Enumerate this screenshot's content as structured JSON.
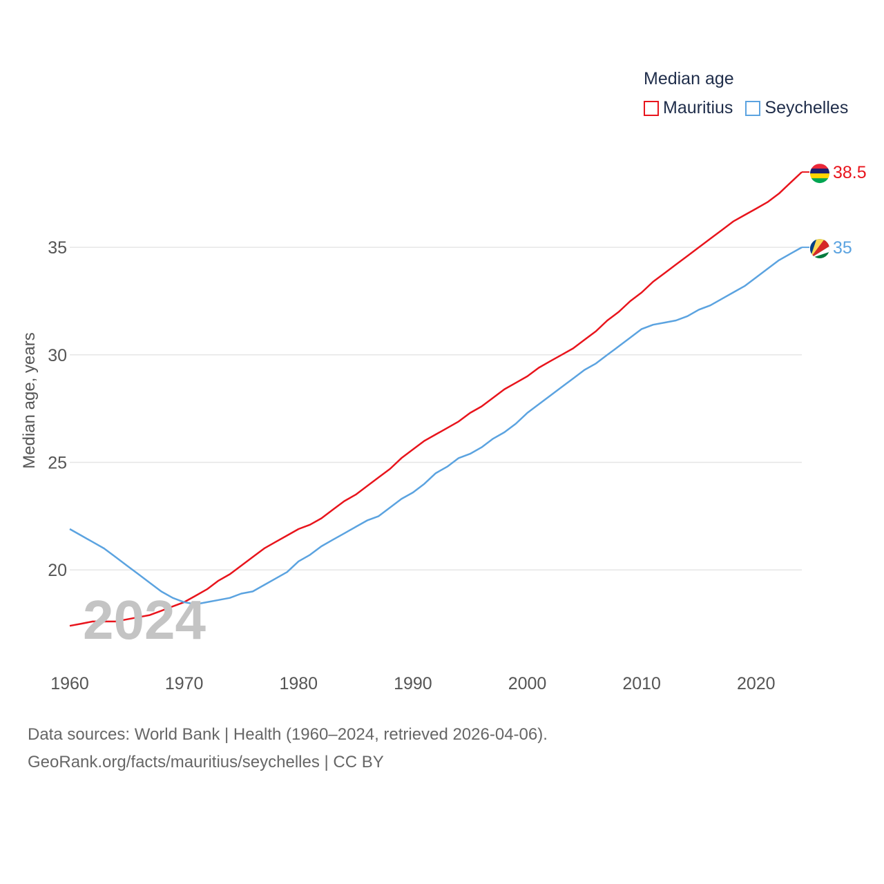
{
  "legend": {
    "title": "Median age"
  },
  "watermark_year": "2024",
  "source": {
    "line1": "Data sources: World Bank | Health (1960–2024, retrieved 2026-04-06).",
    "line2": "GeoRank.org/facts/mauritius/seychelles | CC BY"
  },
  "chart_data": {
    "type": "line",
    "title": "Median age",
    "xlabel": "",
    "ylabel": "Median age, years",
    "xlim": [
      1960,
      2024
    ],
    "ylim": [
      15.8,
      38.6
    ],
    "x_ticks": [
      1960,
      1970,
      1980,
      1990,
      2000,
      2010,
      2020
    ],
    "y_ticks": [
      20,
      25,
      30,
      35
    ],
    "x": [
      1960,
      1961,
      1962,
      1963,
      1964,
      1965,
      1966,
      1967,
      1968,
      1969,
      1970,
      1971,
      1972,
      1973,
      1974,
      1975,
      1976,
      1977,
      1978,
      1979,
      1980,
      1981,
      1982,
      1983,
      1984,
      1985,
      1986,
      1987,
      1988,
      1989,
      1990,
      1991,
      1992,
      1993,
      1994,
      1995,
      1996,
      1997,
      1998,
      1999,
      2000,
      2001,
      2002,
      2003,
      2004,
      2005,
      2006,
      2007,
      2008,
      2009,
      2010,
      2011,
      2012,
      2013,
      2014,
      2015,
      2016,
      2017,
      2018,
      2019,
      2020,
      2021,
      2022,
      2023,
      2024
    ],
    "series": [
      {
        "name": "Mauritius",
        "color": "#e8141c",
        "end_label": "38.5",
        "values": [
          17.4,
          17.5,
          17.6,
          17.6,
          17.6,
          17.7,
          17.8,
          17.9,
          18.1,
          18.3,
          18.5,
          18.8,
          19.1,
          19.5,
          19.8,
          20.2,
          20.6,
          21.0,
          21.3,
          21.6,
          21.9,
          22.1,
          22.4,
          22.8,
          23.2,
          23.5,
          23.9,
          24.3,
          24.7,
          25.2,
          25.6,
          26.0,
          26.3,
          26.6,
          26.9,
          27.3,
          27.6,
          28.0,
          28.4,
          28.7,
          29.0,
          29.4,
          29.7,
          30.0,
          30.3,
          30.7,
          31.1,
          31.6,
          32.0,
          32.5,
          32.9,
          33.4,
          33.8,
          34.2,
          34.6,
          35.0,
          35.4,
          35.8,
          36.2,
          36.5,
          36.8,
          37.1,
          37.5,
          38.0,
          38.5
        ]
      },
      {
        "name": "Seychelles",
        "color": "#5ba3e0",
        "end_label": "35",
        "values": [
          21.9,
          21.6,
          21.3,
          21.0,
          20.6,
          20.2,
          19.8,
          19.4,
          19.0,
          18.7,
          18.5,
          18.4,
          18.5,
          18.6,
          18.7,
          18.9,
          19.0,
          19.3,
          19.6,
          19.9,
          20.4,
          20.7,
          21.1,
          21.4,
          21.7,
          22.0,
          22.3,
          22.5,
          22.9,
          23.3,
          23.6,
          24.0,
          24.5,
          24.8,
          25.2,
          25.4,
          25.7,
          26.1,
          26.4,
          26.8,
          27.3,
          27.7,
          28.1,
          28.5,
          28.9,
          29.3,
          29.6,
          30.0,
          30.4,
          30.8,
          31.2,
          31.4,
          31.5,
          31.6,
          31.8,
          32.1,
          32.3,
          32.6,
          32.9,
          33.2,
          33.6,
          34.0,
          34.4,
          34.7,
          35.0
        ]
      }
    ]
  }
}
